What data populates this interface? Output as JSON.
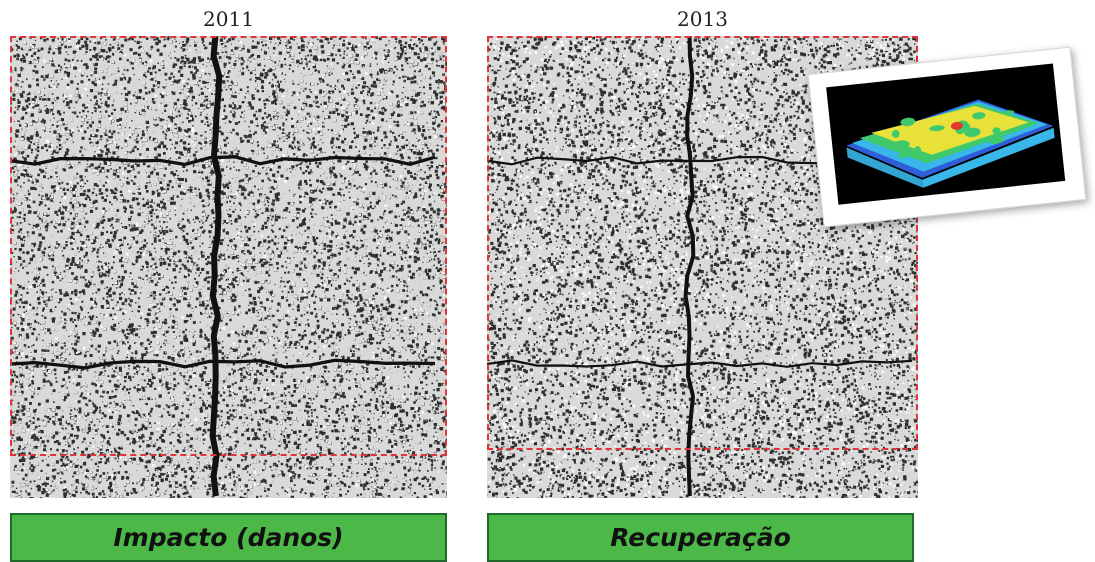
{
  "panels": [
    {
      "year": "2011",
      "label": "Impacto (danos)"
    },
    {
      "year": "2013",
      "label": "Recuperação"
    }
  ],
  "colors": {
    "label_fill": "#4cb847",
    "label_border": "#1f6b2c",
    "roi_outline": "#e0343a",
    "texture_dark": "#111111"
  },
  "inset": {
    "icon": "3d-surface-map-icon",
    "colors": [
      "#2e5fd9",
      "#38b7e8",
      "#40c96b",
      "#e8e13a",
      "#e03a2e"
    ]
  }
}
